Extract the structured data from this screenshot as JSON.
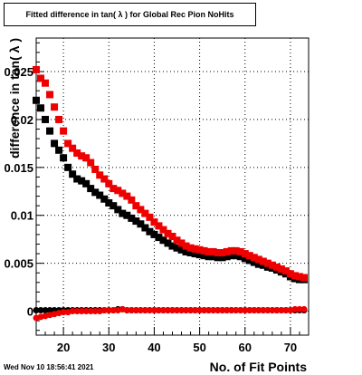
{
  "chart_data": {
    "type": "scatter",
    "title": "Fitted difference in tan( λ ) for Global Rec Pion NoHits",
    "xlabel": "No. of Fit Points",
    "ylabel": "difference in tan( λ )",
    "xlim": [
      14,
      74
    ],
    "ylim": [
      -0.0025,
      0.0285
    ],
    "x_ticks": [
      20,
      30,
      40,
      50,
      60,
      70
    ],
    "y_ticks": [
      0,
      0.005,
      0.01,
      0.015,
      0.02,
      0.025
    ],
    "y_tick_labels": [
      "0",
      "0.005",
      "0.01",
      "0.015",
      "0.02",
      "0.025"
    ],
    "grid": true,
    "series_styles": [
      {
        "color": "#000000",
        "marker": "square"
      },
      {
        "color": "#ee0000",
        "marker": "square"
      },
      {
        "color": "#000000",
        "marker": "circle"
      },
      {
        "color": "#ee0000",
        "marker": "circle"
      }
    ],
    "series": [
      {
        "x": [
          14,
          15,
          16,
          17,
          18,
          19,
          20,
          21,
          22,
          23,
          24,
          25,
          26,
          27,
          28,
          29,
          30,
          31,
          32,
          33,
          34,
          35,
          36,
          37,
          38,
          39,
          40,
          41,
          42,
          43,
          44,
          45,
          46,
          47,
          48,
          49,
          50,
          51,
          52,
          53,
          54,
          55,
          56,
          57,
          58,
          59,
          60,
          61,
          62,
          63,
          64,
          65,
          66,
          67,
          68,
          69,
          70,
          71,
          72,
          73
        ],
        "y": [
          0.022,
          0.0212,
          0.02,
          0.0188,
          0.0175,
          0.0168,
          0.016,
          0.015,
          0.0143,
          0.0138,
          0.0136,
          0.0133,
          0.0128,
          0.0124,
          0.0121,
          0.0117,
          0.0113,
          0.011,
          0.0106,
          0.0102,
          0.01,
          0.0097,
          0.0094,
          0.0091,
          0.0087,
          0.0083,
          0.008,
          0.0077,
          0.0074,
          0.0071,
          0.0068,
          0.0066,
          0.0064,
          0.0062,
          0.0061,
          0.006,
          0.0059,
          0.0058,
          0.0057,
          0.0057,
          0.0056,
          0.0056,
          0.0057,
          0.0058,
          0.0058,
          0.0057,
          0.0055,
          0.0053,
          0.0051,
          0.0049,
          0.0048,
          0.0046,
          0.0045,
          0.0043,
          0.0041,
          0.0039,
          0.0036,
          0.0034,
          0.0033,
          0.0033
        ]
      },
      {
        "x": [
          14,
          15,
          16,
          17,
          18,
          19,
          20,
          21,
          22,
          23,
          24,
          25,
          26,
          27,
          28,
          29,
          30,
          31,
          32,
          33,
          34,
          35,
          36,
          37,
          38,
          39,
          40,
          41,
          42,
          43,
          44,
          45,
          46,
          47,
          48,
          49,
          50,
          51,
          52,
          53,
          54,
          55,
          56,
          57,
          58,
          59,
          60,
          61,
          62,
          63,
          64,
          65,
          66,
          67,
          68,
          69,
          70,
          71,
          72,
          73
        ],
        "y": [
          0.0252,
          0.0243,
          0.0238,
          0.0226,
          0.0213,
          0.02,
          0.0188,
          0.0175,
          0.017,
          0.0165,
          0.0162,
          0.016,
          0.0155,
          0.0148,
          0.0142,
          0.0138,
          0.0133,
          0.0128,
          0.0126,
          0.0123,
          0.012,
          0.0116,
          0.011,
          0.0106,
          0.0102,
          0.0098,
          0.0093,
          0.0089,
          0.0085,
          0.0081,
          0.0078,
          0.0074,
          0.0071,
          0.0068,
          0.0066,
          0.0065,
          0.0064,
          0.0063,
          0.0062,
          0.0062,
          0.0061,
          0.0061,
          0.0062,
          0.0063,
          0.0063,
          0.0062,
          0.006,
          0.0058,
          0.0056,
          0.0054,
          0.0052,
          0.005,
          0.0048,
          0.0046,
          0.0044,
          0.0042,
          0.0039,
          0.0037,
          0.0036,
          0.0035
        ]
      },
      {
        "x": [
          14,
          15,
          16,
          17,
          18,
          19,
          20,
          21,
          22,
          23,
          24,
          25,
          26,
          27,
          28,
          29,
          30,
          31,
          32,
          33,
          34,
          35,
          36,
          37,
          38,
          39,
          40,
          41,
          42,
          43,
          44,
          45,
          46,
          47,
          48,
          49,
          50,
          51,
          52,
          53,
          54,
          55,
          56,
          57,
          58,
          59,
          60,
          61,
          62,
          63,
          64,
          65,
          66,
          67,
          68,
          69,
          70,
          71,
          72,
          73
        ],
        "y": [
          0.0001,
          0.0001,
          0.0001,
          0.0001,
          0.0001,
          0.0001,
          0.0001,
          0.0001,
          0.0001,
          0.0001,
          0.0001,
          0.0001,
          0.0001,
          0.0001,
          0.0001,
          0.0001,
          0.0001,
          0.0001,
          0.0002,
          0.0002,
          0.0001,
          0.0001,
          0.0001,
          0.0001,
          0.0001,
          0.0001,
          0.0001,
          0.0001,
          0.0001,
          0.0001,
          0.0001,
          0.0001,
          0.0001,
          0.0001,
          0.0001,
          0.0001,
          0.0001,
          0.0001,
          0.0001,
          0.0001,
          0.0001,
          0.0001,
          0.0001,
          0.0001,
          0.0001,
          0.0001,
          0.0001,
          0.0001,
          0.0001,
          0.0001,
          0.0001,
          0.0001,
          0.0001,
          0.0001,
          0.0001,
          0.0001,
          0.0001,
          0.0001,
          0.0001,
          0.0001
        ]
      },
      {
        "x": [
          14,
          15,
          16,
          17,
          18,
          19,
          20,
          21,
          22,
          23,
          24,
          25,
          26,
          27,
          28,
          29,
          30,
          31,
          32,
          33,
          34,
          35,
          36,
          37,
          38,
          39,
          40,
          41,
          42,
          43,
          44,
          45,
          46,
          47,
          48,
          49,
          50,
          51,
          52,
          53,
          54,
          55,
          56,
          57,
          58,
          59,
          60,
          61,
          62,
          63,
          64,
          65,
          66,
          67,
          68,
          69,
          70,
          71,
          72,
          73
        ],
        "y": [
          -0.0007,
          -0.0006,
          -0.0005,
          -0.0004,
          -0.0003,
          -0.0002,
          -0.0001,
          -0.0001,
          0.0,
          0.0,
          0.0,
          0.0,
          0.0,
          0.0,
          0.0,
          0.0001,
          0.0001,
          0.0001,
          0.0001,
          0.0002,
          0.0001,
          0.0001,
          0.0001,
          0.0001,
          0.0001,
          0.0001,
          0.0001,
          0.0001,
          0.0001,
          0.0001,
          0.0001,
          0.0001,
          0.0001,
          0.0001,
          0.0001,
          0.0001,
          0.0001,
          0.0001,
          0.0001,
          0.0001,
          0.0001,
          0.0001,
          0.0001,
          0.0001,
          0.0001,
          0.0001,
          0.0001,
          0.0001,
          0.0001,
          0.0001,
          0.0001,
          0.0001,
          0.0001,
          0.0001,
          0.0001,
          0.0001,
          0.0001,
          0.0002,
          0.0002,
          0.0002
        ]
      }
    ]
  },
  "timestamp": "Wed Nov 10 18:56:41 2021"
}
